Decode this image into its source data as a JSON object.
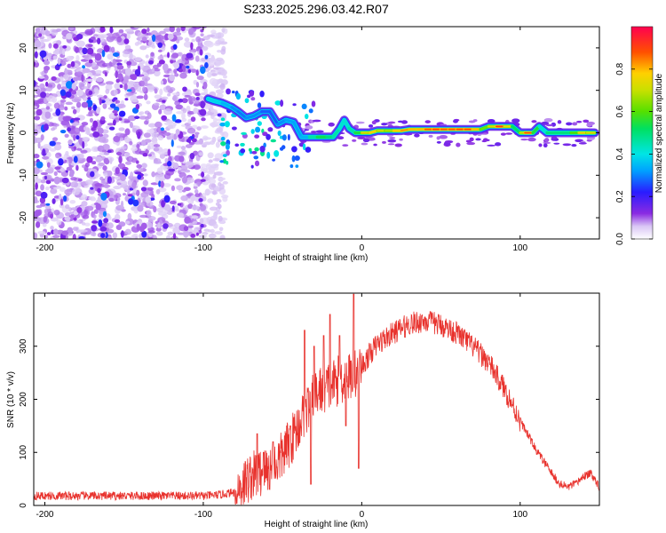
{
  "figure_title": "S233.2025.296.03.42.R07",
  "chart_data": [
    {
      "type": "heatmap",
      "name": "spectrogram",
      "xlabel": "Height of straight line (km)",
      "ylabel": "Frequency (Hz)",
      "xlim": [
        -207,
        150
      ],
      "ylim": [
        -25,
        25
      ],
      "xticks": [
        -200,
        -100,
        0,
        100
      ],
      "yticks": [
        -20,
        -10,
        0,
        10,
        20
      ],
      "colorbar": {
        "label": "Normalized spectral amplitude",
        "range": [
          0,
          1
        ],
        "ticks": [
          0,
          0.2,
          0.4,
          0.6,
          0.8
        ],
        "tick_labels": [
          "0.0",
          "0.2",
          "0.4",
          "0.6",
          "0.8"
        ]
      },
      "noise_region": {
        "x_from": -207,
        "x_to": -90,
        "amplitude": [
          0.05,
          0.3
        ]
      },
      "scatter_region": {
        "x_from": -90,
        "x_to": -30,
        "freq": [
          -8,
          10
        ],
        "amplitude": [
          0.1,
          0.5
        ]
      },
      "ridge": [
        {
          "x": -97,
          "freq": 8,
          "amp": 0.35
        },
        {
          "x": -93,
          "freq": 7.5,
          "amp": 0.4
        },
        {
          "x": -88,
          "freq": 7,
          "amp": 0.35
        },
        {
          "x": -82,
          "freq": 6,
          "amp": 0.3
        },
        {
          "x": -78,
          "freq": 5,
          "amp": 0.25
        },
        {
          "x": -73,
          "freq": 3.5,
          "amp": 0.25
        },
        {
          "x": -68,
          "freq": 4,
          "amp": 0.3
        },
        {
          "x": -63,
          "freq": 5,
          "amp": 0.25
        },
        {
          "x": -58,
          "freq": 5,
          "amp": 0.2
        },
        {
          "x": -53,
          "freq": 2,
          "amp": 0.25
        },
        {
          "x": -48,
          "freq": 3,
          "amp": 0.3
        },
        {
          "x": -43,
          "freq": 2.5,
          "amp": 0.3
        },
        {
          "x": -38,
          "freq": -1,
          "amp": 0.3
        },
        {
          "x": -33,
          "freq": -1,
          "amp": 0.35
        },
        {
          "x": -28,
          "freq": -1,
          "amp": 0.6
        },
        {
          "x": -22,
          "freq": -1,
          "amp": 0.55
        },
        {
          "x": -18,
          "freq": -1,
          "amp": 0.5
        },
        {
          "x": -14,
          "freq": 1,
          "amp": 0.45
        },
        {
          "x": -11,
          "freq": 3,
          "amp": 0.4
        },
        {
          "x": -8,
          "freq": 1,
          "amp": 0.45
        },
        {
          "x": -4,
          "freq": 0,
          "amp": 0.5
        },
        {
          "x": 0,
          "freq": 0,
          "amp": 0.7
        },
        {
          "x": 5,
          "freq": 0,
          "amp": 0.75
        },
        {
          "x": 10,
          "freq": 0.5,
          "amp": 0.8
        },
        {
          "x": 15,
          "freq": 0.5,
          "amp": 0.6
        },
        {
          "x": 20,
          "freq": 0.5,
          "amp": 0.75
        },
        {
          "x": 25,
          "freq": 0.5,
          "amp": 0.8
        },
        {
          "x": 30,
          "freq": 0.8,
          "amp": 0.85
        },
        {
          "x": 35,
          "freq": 0.8,
          "amp": 0.75
        },
        {
          "x": 40,
          "freq": 0.8,
          "amp": 0.85
        },
        {
          "x": 45,
          "freq": 0.8,
          "amp": 0.9
        },
        {
          "x": 50,
          "freq": 0.8,
          "amp": 0.9
        },
        {
          "x": 55,
          "freq": 0.8,
          "amp": 0.85
        },
        {
          "x": 60,
          "freq": 0.8,
          "amp": 0.9
        },
        {
          "x": 65,
          "freq": 0.8,
          "amp": 0.88
        },
        {
          "x": 70,
          "freq": 0.8,
          "amp": 0.9
        },
        {
          "x": 75,
          "freq": 0.8,
          "amp": 0.7
        },
        {
          "x": 80,
          "freq": 1.5,
          "amp": 0.55
        },
        {
          "x": 85,
          "freq": 1.5,
          "amp": 0.9
        },
        {
          "x": 90,
          "freq": 1.5,
          "amp": 0.9
        },
        {
          "x": 95,
          "freq": 1.5,
          "amp": 0.6
        },
        {
          "x": 100,
          "freq": 0,
          "amp": 0.5
        },
        {
          "x": 103,
          "freq": 0,
          "amp": 0.9
        },
        {
          "x": 108,
          "freq": 0,
          "amp": 0.85
        },
        {
          "x": 112,
          "freq": 1.5,
          "amp": 0.35
        },
        {
          "x": 117,
          "freq": 0,
          "amp": 0.5
        },
        {
          "x": 122,
          "freq": 0,
          "amp": 0.55
        },
        {
          "x": 127,
          "freq": 0,
          "amp": 0.5
        },
        {
          "x": 132,
          "freq": 0,
          "amp": 0.55
        },
        {
          "x": 137,
          "freq": 0,
          "amp": 0.65
        },
        {
          "x": 142,
          "freq": 0,
          "amp": 0.85
        },
        {
          "x": 147,
          "freq": 0,
          "amp": 0.6
        }
      ]
    },
    {
      "type": "line",
      "name": "snr",
      "xlabel": "Height of straight line (km)",
      "ylabel": "SNR (10 * v/v)",
      "xlim": [
        -207,
        150
      ],
      "ylim": [
        0,
        400
      ],
      "xticks": [
        -200,
        -100,
        0,
        100
      ],
      "yticks": [
        0,
        100,
        200,
        300
      ],
      "color": "#e8322d",
      "envelope": {
        "x": [
          -207,
          -150,
          -100,
          -90,
          -80,
          -75,
          -70,
          -65,
          -60,
          -55,
          -50,
          -45,
          -40,
          -35,
          -30,
          -25,
          -20,
          -15,
          -10,
          -5,
          0,
          5,
          10,
          20,
          30,
          40,
          50,
          60,
          70,
          80,
          90,
          100,
          110,
          120,
          125,
          130,
          135,
          140,
          145,
          150
        ],
        "y": [
          18,
          18,
          18,
          20,
          25,
          40,
          55,
          60,
          65,
          75,
          95,
          120,
          150,
          180,
          205,
          220,
          225,
          235,
          240,
          245,
          260,
          285,
          305,
          325,
          342,
          348,
          340,
          325,
          300,
          270,
          220,
          160,
          105,
          60,
          40,
          35,
          40,
          55,
          60,
          35
        ]
      },
      "noise_amplitude": 8,
      "spikes": [
        {
          "x": -66,
          "y": 135
        },
        {
          "x": -62,
          "y": 100
        },
        {
          "x": -56,
          "y": 120
        },
        {
          "x": -45,
          "y": 150
        },
        {
          "x": -36,
          "y": 330
        },
        {
          "x": -30,
          "y": 300
        },
        {
          "x": -24,
          "y": 320
        },
        {
          "x": -20,
          "y": 360
        },
        {
          "x": -14,
          "y": 320
        },
        {
          "x": -10,
          "y": 350
        },
        {
          "x": -5,
          "y": 398
        },
        {
          "x": -2,
          "y": 380
        }
      ],
      "dips": [
        {
          "x": -2,
          "y": 70
        },
        {
          "x": -10,
          "y": 150
        },
        {
          "x": -32,
          "y": 40
        }
      ]
    }
  ]
}
